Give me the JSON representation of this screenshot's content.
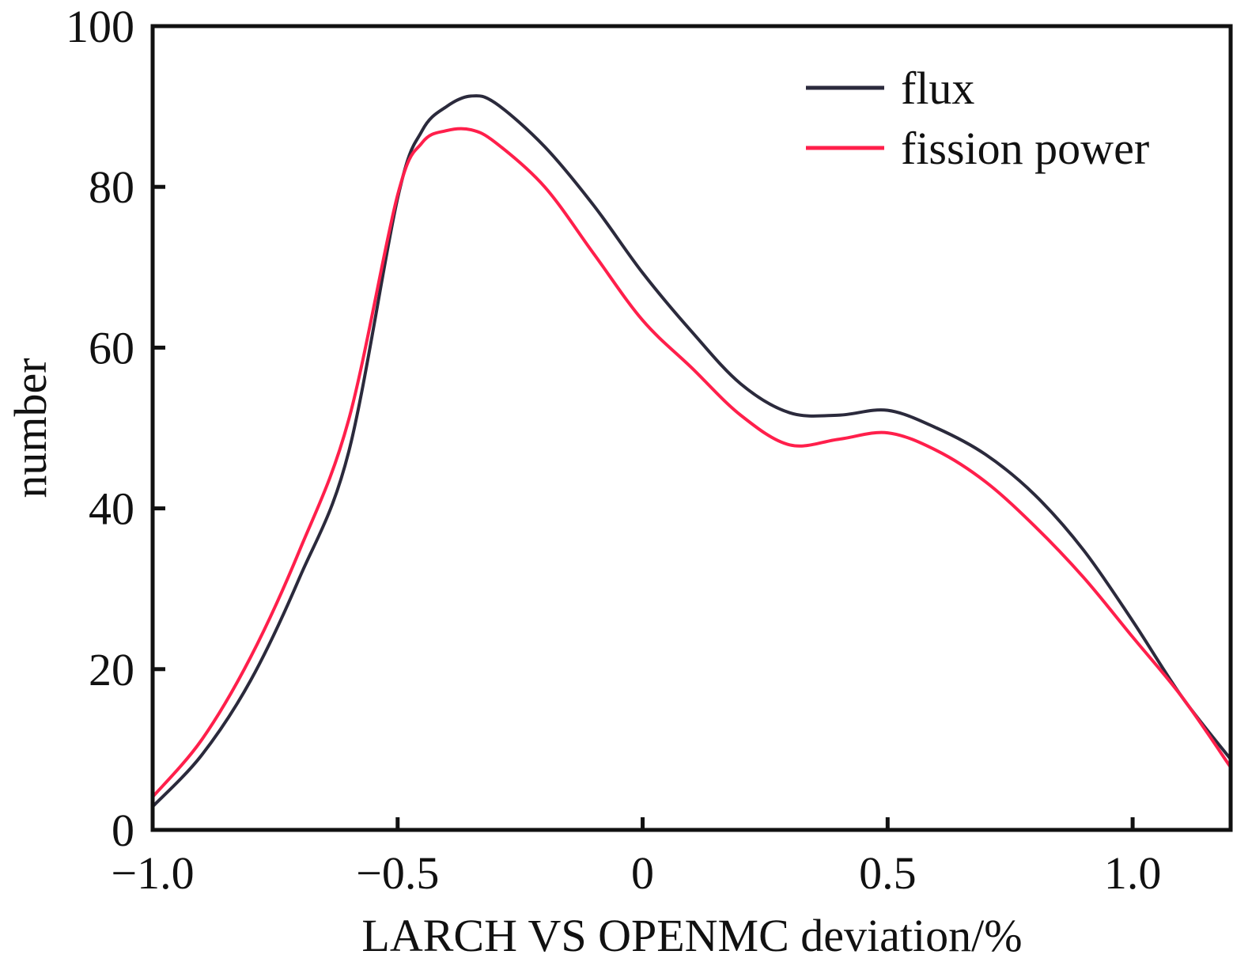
{
  "chart_data": {
    "type": "line",
    "title": "",
    "xlabel": "LARCH VS OPENMC deviation/%",
    "ylabel": "number",
    "xlim": [
      -1.0,
      1.2
    ],
    "ylim": [
      0,
      100
    ],
    "xticks": [
      -1.0,
      -0.5,
      0,
      0.5,
      1.0
    ],
    "xtick_labels": [
      "−1.0",
      "−0.5",
      "0",
      "0.5",
      "1.0"
    ],
    "yticks": [
      0,
      20,
      40,
      60,
      80,
      100
    ],
    "ytick_labels": [
      "0",
      "20",
      "40",
      "60",
      "80",
      "100"
    ],
    "grid": false,
    "legend_position": "top-right",
    "x": [
      -1.0,
      -0.9,
      -0.8,
      -0.7,
      -0.6,
      -0.5,
      -0.45,
      -0.4,
      -0.35,
      -0.3,
      -0.2,
      -0.1,
      0,
      0.1,
      0.2,
      0.3,
      0.4,
      0.5,
      0.6,
      0.7,
      0.8,
      0.9,
      1.0,
      1.1,
      1.2
    ],
    "series": [
      {
        "name": "flux",
        "color": "#2b2a3c",
        "values": [
          2.9,
          9.3,
          18.6,
          31.4,
          47,
          78.6,
          87,
          90,
          91.3,
          90.4,
          85,
          77.7,
          69.3,
          62,
          55.5,
          51.9,
          51.6,
          52.2,
          50,
          46.7,
          41.7,
          34.8,
          26,
          16.6,
          8.8
        ]
      },
      {
        "name": "fission power",
        "color": "#ff1f4b",
        "values": [
          4.1,
          11.2,
          21.5,
          34.8,
          51,
          79,
          85.5,
          87,
          87.1,
          85.5,
          80,
          71.7,
          63.4,
          57.5,
          51.6,
          47.9,
          48.6,
          49.4,
          47.2,
          43.3,
          37.8,
          31.4,
          24,
          16.6,
          7.8
        ]
      }
    ]
  }
}
